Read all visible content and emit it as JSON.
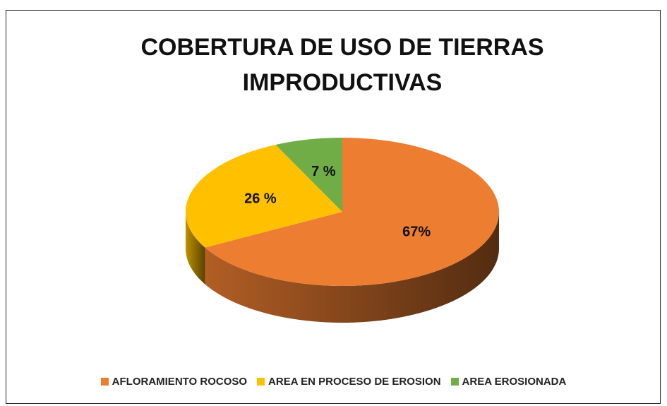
{
  "chart_data": {
    "type": "pie",
    "title": "COBERTURA DE USO DE TIERRAS IMPRODUCTIVAS",
    "categories": [
      "AFLORAMIENTO ROCOSO",
      "AREA EN PROCESO DE EROSION",
      "AREA EROSIONADA"
    ],
    "values": [
      67,
      26,
      7
    ],
    "value_labels": [
      "67%",
      "26 %",
      "7 %"
    ],
    "colors": [
      "#ED7D31",
      "#FFC000",
      "#70AD47"
    ],
    "legend": "bottom"
  }
}
